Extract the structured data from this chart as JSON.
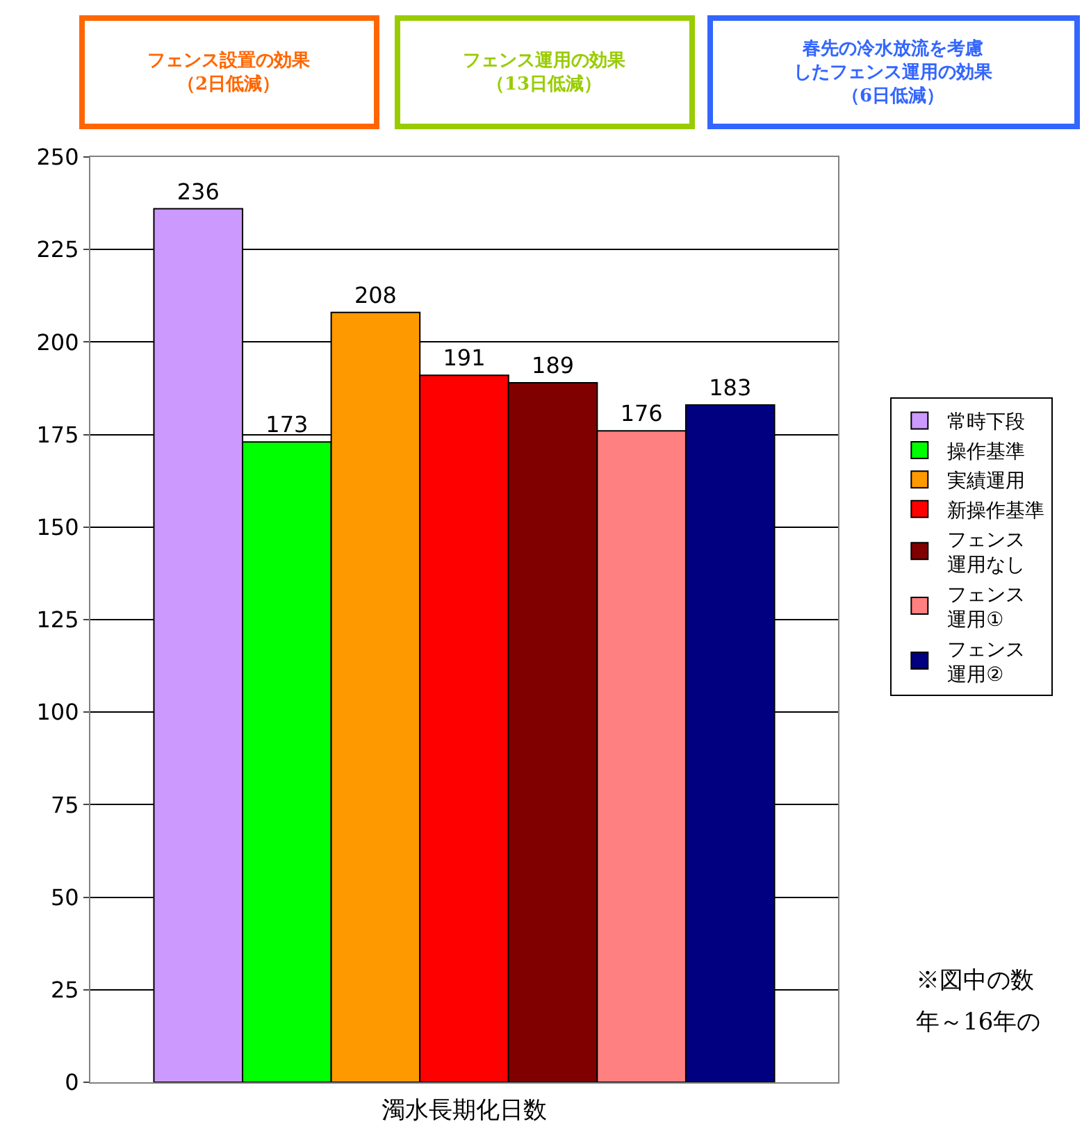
{
  "chart_data": {
    "type": "bar",
    "xlabel": "濁水長期化日数",
    "categories": [
      null
    ],
    "series": [
      {
        "name": "常時下段",
        "color": "#cc99ff",
        "values": [
          236
        ]
      },
      {
        "name": "操作基準",
        "color": "#00ff00",
        "values": [
          173
        ]
      },
      {
        "name": "実績運用",
        "color": "#ff9900",
        "values": [
          208
        ]
      },
      {
        "name": "新操作基準",
        "color": "#ff0000",
        "values": [
          191
        ]
      },
      {
        "name": "フェンス運用なし",
        "color": "#800000",
        "values": [
          189
        ]
      },
      {
        "name": "フェンス運用①",
        "color": "#ff8080",
        "values": [
          176
        ]
      },
      {
        "name": "フェンス運用②",
        "color": "#000080",
        "values": [
          183
        ]
      }
    ],
    "ylim": [
      0,
      250
    ],
    "yticks": [
      0,
      25,
      50,
      75,
      100,
      125,
      150,
      175,
      200,
      225,
      250
    ],
    "grid": "y",
    "legend": "right",
    "data_labels": true,
    "annotations": [
      "フェンス設置の効果（2日低減）",
      "フェンス運用の効果（13日低減）",
      "春先の冷水放流を考慮したフェンス運用の効果（6日低減）",
      "※図中の数",
      "年～16年の"
    ]
  }
}
